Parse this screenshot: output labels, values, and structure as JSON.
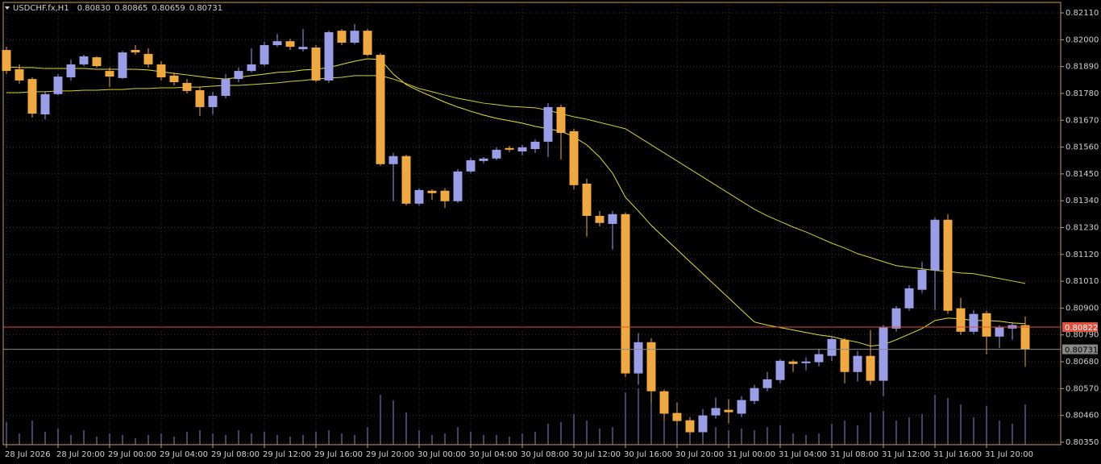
{
  "chart_data": {
    "type": "candlestick",
    "legend_text": "USDCHF.fx,H1",
    "header_labels": [
      "0.80830",
      "0.80865",
      "0.80659",
      "0.80731"
    ],
    "categories": [
      "28 Jul 2026",
      null,
      null,
      null,
      "28 Jul 20:00",
      null,
      null,
      null,
      "29 Jul 00:00",
      null,
      null,
      null,
      "29 Jul 04:00",
      null,
      null,
      null,
      "29 Jul 08:00",
      null,
      null,
      null,
      "29 Jul 12:00",
      null,
      null,
      null,
      "29 Jul 16:00",
      null,
      null,
      null,
      "29 Jul 20:00",
      null,
      null,
      null,
      "30 Jul 00:00",
      null,
      null,
      null,
      "30 Jul 04:00",
      null,
      null,
      null,
      "30 Jul 08:00",
      null,
      null,
      null,
      "30 Jul 12:00",
      null,
      null,
      null,
      "30 Jul 16:00",
      null,
      null,
      null,
      "30 Jul 20:00",
      null,
      null,
      null,
      "31 Jul 00:00",
      null,
      null,
      null,
      "31 Jul 04:00",
      null,
      null,
      null,
      "31 Jul 08:00",
      null,
      null,
      null,
      "31 Jul 12:00",
      null,
      null,
      null,
      "31 Jul 16:00",
      null,
      null,
      null,
      "31 Jul 20:00",
      null,
      null,
      null
    ],
    "open": [
      0.81958,
      0.81879,
      0.81839,
      0.81694,
      0.81777,
      0.81846,
      0.81899,
      0.81928,
      0.81872,
      0.81843,
      0.81958,
      0.81942,
      0.81899,
      0.81853,
      0.81823,
      0.81793,
      0.81724,
      0.8177,
      0.81839,
      0.81872,
      0.81899,
      0.81978,
      0.81994,
      0.81961,
      0.81968,
      0.81833,
      0.82037,
      0.81988,
      0.82037,
      0.81938,
      0.8149,
      0.81523,
      0.81328,
      0.81381,
      0.81381,
      0.81338,
      0.8146,
      0.81503,
      0.81513,
      0.81556,
      0.81542,
      0.81552,
      0.81582,
      0.81724,
      0.81625,
      0.8141,
      0.81278,
      0.81245,
      0.81285,
      0.80632,
      0.8076,
      0.80559,
      0.8047,
      0.8044,
      0.80391,
      0.8046,
      0.80483,
      0.80467,
      0.80519,
      0.80572,
      0.80605,
      0.80681,
      0.80674,
      0.80678,
      0.80704,
      0.8077,
      0.80638,
      0.80704,
      0.80602,
      0.80816,
      0.80899,
      0.80975,
      0.81054,
      0.81262,
      0.80899,
      0.80803,
      0.80879,
      0.80783,
      0.80816,
      0.8083
    ],
    "high": [
      0.81971,
      0.81899,
      0.81846,
      0.81787,
      0.81859,
      0.81919,
      0.81938,
      0.81932,
      0.81886,
      0.81955,
      0.81978,
      0.81965,
      0.81912,
      0.81866,
      0.81839,
      0.81806,
      0.81787,
      0.81859,
      0.81886,
      0.81965,
      0.81991,
      0.82024,
      0.82004,
      0.82044,
      0.81978,
      0.82037,
      0.82044,
      0.82064,
      0.82044,
      0.81945,
      0.81536,
      0.81529,
      0.81391,
      0.81387,
      0.81391,
      0.8147,
      0.81516,
      0.81519,
      0.81559,
      0.81565,
      0.81569,
      0.81592,
      0.8174,
      0.81734,
      0.81635,
      0.8143,
      0.81298,
      0.81298,
      0.81292,
      0.80797,
      0.80777,
      0.80566,
      0.80513,
      0.80453,
      0.80486,
      0.80533,
      0.80526,
      0.80539,
      0.80585,
      0.80638,
      0.80691,
      0.80688,
      0.80698,
      0.80731,
      0.80783,
      0.80777,
      0.80724,
      0.8081,
      0.8083,
      0.80909,
      0.80995,
      0.8109,
      0.81272,
      0.81285,
      0.80942,
      0.80892,
      0.80889,
      0.8083,
      0.80843,
      0.80865
    ],
    "low": [
      0.81859,
      0.8182,
      0.81681,
      0.81674,
      0.81773,
      0.81833,
      0.81892,
      0.81886,
      0.81806,
      0.81839,
      0.81938,
      0.81886,
      0.81833,
      0.81813,
      0.8178,
      0.81688,
      0.81694,
      0.8176,
      0.81826,
      0.81866,
      0.81892,
      0.81971,
      0.81958,
      0.81952,
      0.81826,
      0.81823,
      0.81978,
      0.81981,
      0.81932,
      0.81483,
      0.81338,
      0.81321,
      0.81321,
      0.81344,
      0.81311,
      0.81331,
      0.81453,
      0.81493,
      0.81506,
      0.81539,
      0.81526,
      0.81536,
      0.81519,
      0.81509,
      0.81387,
      0.81193,
      0.81235,
      0.8114,
      0.80618,
      0.80585,
      0.80513,
      0.8044,
      0.8042,
      0.80381,
      0.80381,
      0.80447,
      0.80427,
      0.80453,
      0.80506,
      0.80559,
      0.80592,
      0.80638,
      0.80645,
      0.80661,
      0.80684,
      0.80592,
      0.80599,
      0.80585,
      0.80539,
      0.80803,
      0.80889,
      0.80962,
      0.80892,
      0.80876,
      0.8079,
      0.80793,
      0.80711,
      0.80737,
      0.8077,
      0.80659
    ],
    "close": [
      0.81872,
      0.81833,
      0.81697,
      0.81777,
      0.81849,
      0.81899,
      0.81932,
      0.81892,
      0.81849,
      0.81948,
      0.81948,
      0.81899,
      0.81846,
      0.81826,
      0.8179,
      0.81724,
      0.8177,
      0.81839,
      0.81872,
      0.81899,
      0.81978,
      0.81994,
      0.81971,
      0.81971,
      0.81833,
      0.82031,
      0.81988,
      0.82037,
      0.81938,
      0.8149,
      0.81523,
      0.81328,
      0.81384,
      0.81371,
      0.81338,
      0.8146,
      0.81506,
      0.81513,
      0.81549,
      0.81549,
      0.81559,
      0.81582,
      0.81724,
      0.81618,
      0.81404,
      0.81278,
      0.81249,
      0.81285,
      0.80632,
      0.8076,
      0.80559,
      0.80467,
      0.80437,
      0.80391,
      0.8046,
      0.8049,
      0.80473,
      0.80523,
      0.80572,
      0.80608,
      0.80684,
      0.80671,
      0.80681,
      0.80711,
      0.80773,
      0.80638,
      0.80704,
      0.80602,
      0.8082,
      0.80899,
      0.80981,
      0.81057,
      0.81262,
      0.80889,
      0.80803,
      0.80876,
      0.80783,
      0.8082,
      0.8083,
      0.80731
    ],
    "up_color": "#9a9de8",
    "down_color": "#f0a840",
    "volumes": [
      28,
      14,
      30,
      16,
      20,
      12,
      18,
      10,
      14,
      12,
      8,
      12,
      14,
      10,
      16,
      18,
      14,
      12,
      18,
      14,
      16,
      12,
      10,
      12,
      16,
      18,
      14,
      12,
      22,
      62,
      55,
      40,
      18,
      12,
      14,
      22,
      16,
      12,
      12,
      10,
      14,
      16,
      26,
      28,
      38,
      30,
      20,
      22,
      65,
      70,
      60,
      38,
      30,
      24,
      26,
      22,
      18,
      20,
      18,
      22,
      24,
      14,
      12,
      14,
      26,
      30,
      24,
      40,
      42,
      30,
      34,
      38,
      62,
      58,
      50,
      34,
      48,
      30,
      26,
      50
    ],
    "volume_lim": [
      0,
      100
    ],
    "volume_color": "#8085d8",
    "ma_lines": [
      {
        "color": "#e8e020",
        "values": [
          0.81889,
          0.81886,
          0.81886,
          0.81882,
          0.81882,
          0.81882,
          0.81882,
          0.81879,
          0.81879,
          0.81879,
          0.81879,
          0.81876,
          0.81869,
          0.81862,
          0.81856,
          0.81849,
          0.81843,
          0.81839,
          0.81846,
          0.81853,
          0.81859,
          0.81866,
          0.81869,
          0.81876,
          0.81879,
          0.81886,
          0.81899,
          0.81912,
          0.81922,
          0.81919,
          0.81859,
          0.81816,
          0.8179,
          0.81767,
          0.81744,
          0.81724,
          0.81707,
          0.81691,
          0.81678,
          0.81668,
          0.81658,
          0.81645,
          0.81635,
          0.81625,
          0.81602,
          0.81569,
          0.81519,
          0.81453,
          0.81354,
          0.81298,
          0.81239,
          0.81189,
          0.8114,
          0.8109,
          0.81041,
          0.80991,
          0.80942,
          0.80892,
          0.80843,
          0.8083,
          0.8082,
          0.8081,
          0.808,
          0.8079,
          0.80783,
          0.8077,
          0.8076,
          0.80744,
          0.8075,
          0.8077,
          0.80793,
          0.80816,
          0.80849,
          0.80859,
          0.80856,
          0.80849,
          0.80849,
          0.80846,
          0.80839,
          0.80836
        ]
      },
      {
        "color": "#d8d020",
        "values": [
          0.81783,
          0.81783,
          0.81787,
          0.81787,
          0.8179,
          0.8179,
          0.81793,
          0.81793,
          0.81796,
          0.81796,
          0.818,
          0.818,
          0.81803,
          0.81803,
          0.81806,
          0.81806,
          0.8181,
          0.81813,
          0.81813,
          0.81816,
          0.8182,
          0.81823,
          0.81829,
          0.81833,
          0.81839,
          0.81843,
          0.81846,
          0.81853,
          0.81853,
          0.81853,
          0.81839,
          0.8182,
          0.818,
          0.81787,
          0.81773,
          0.8176,
          0.8175,
          0.8174,
          0.81734,
          0.81727,
          0.81724,
          0.81721,
          0.81711,
          0.81697,
          0.81684,
          0.81674,
          0.81661,
          0.81648,
          0.81635,
          0.81602,
          0.81569,
          0.81536,
          0.81503,
          0.8147,
          0.81437,
          0.81404,
          0.81371,
          0.81338,
          0.81305,
          0.81278,
          0.81255,
          0.81232,
          0.81212,
          0.81189,
          0.81166,
          0.81146,
          0.81123,
          0.81107,
          0.8109,
          0.81074,
          0.81067,
          0.81061,
          0.81054,
          0.81051,
          0.81044,
          0.81041,
          0.81031,
          0.81021,
          0.81011,
          0.81001
        ]
      }
    ],
    "price_lines": [
      {
        "value": 0.80822,
        "label": "0.80822",
        "color": "#e0503c"
      },
      {
        "value": 0.80731,
        "label": "0.80731",
        "color": "#8a8a8a"
      }
    ],
    "ylim": [
      0.8034,
      0.82153
    ],
    "yticks": [
      {
        "value": 0.8211,
        "label": "0.82110"
      },
      {
        "value": 0.82,
        "label": "0.82000"
      },
      {
        "value": 0.8189,
        "label": "0.81890"
      },
      {
        "value": 0.8178,
        "label": "0.81780"
      },
      {
        "value": 0.8167,
        "label": "0.81670"
      },
      {
        "value": 0.8156,
        "label": "0.81560"
      },
      {
        "value": 0.8145,
        "label": "0.81450"
      },
      {
        "value": 0.8134,
        "label": "0.81340"
      },
      {
        "value": 0.8123,
        "label": "0.81230"
      },
      {
        "value": 0.8112,
        "label": "0.81120"
      },
      {
        "value": 0.8101,
        "label": "0.81010"
      },
      {
        "value": 0.809,
        "label": "0.80900"
      },
      {
        "value": 0.8079,
        "label": "0.80790"
      },
      {
        "value": 0.8068,
        "label": "0.80680"
      },
      {
        "value": 0.8057,
        "label": "0.80570"
      },
      {
        "value": 0.8046,
        "label": "0.80460"
      },
      {
        "value": 0.8035,
        "label": "0.80350"
      }
    ],
    "grid": true
  }
}
